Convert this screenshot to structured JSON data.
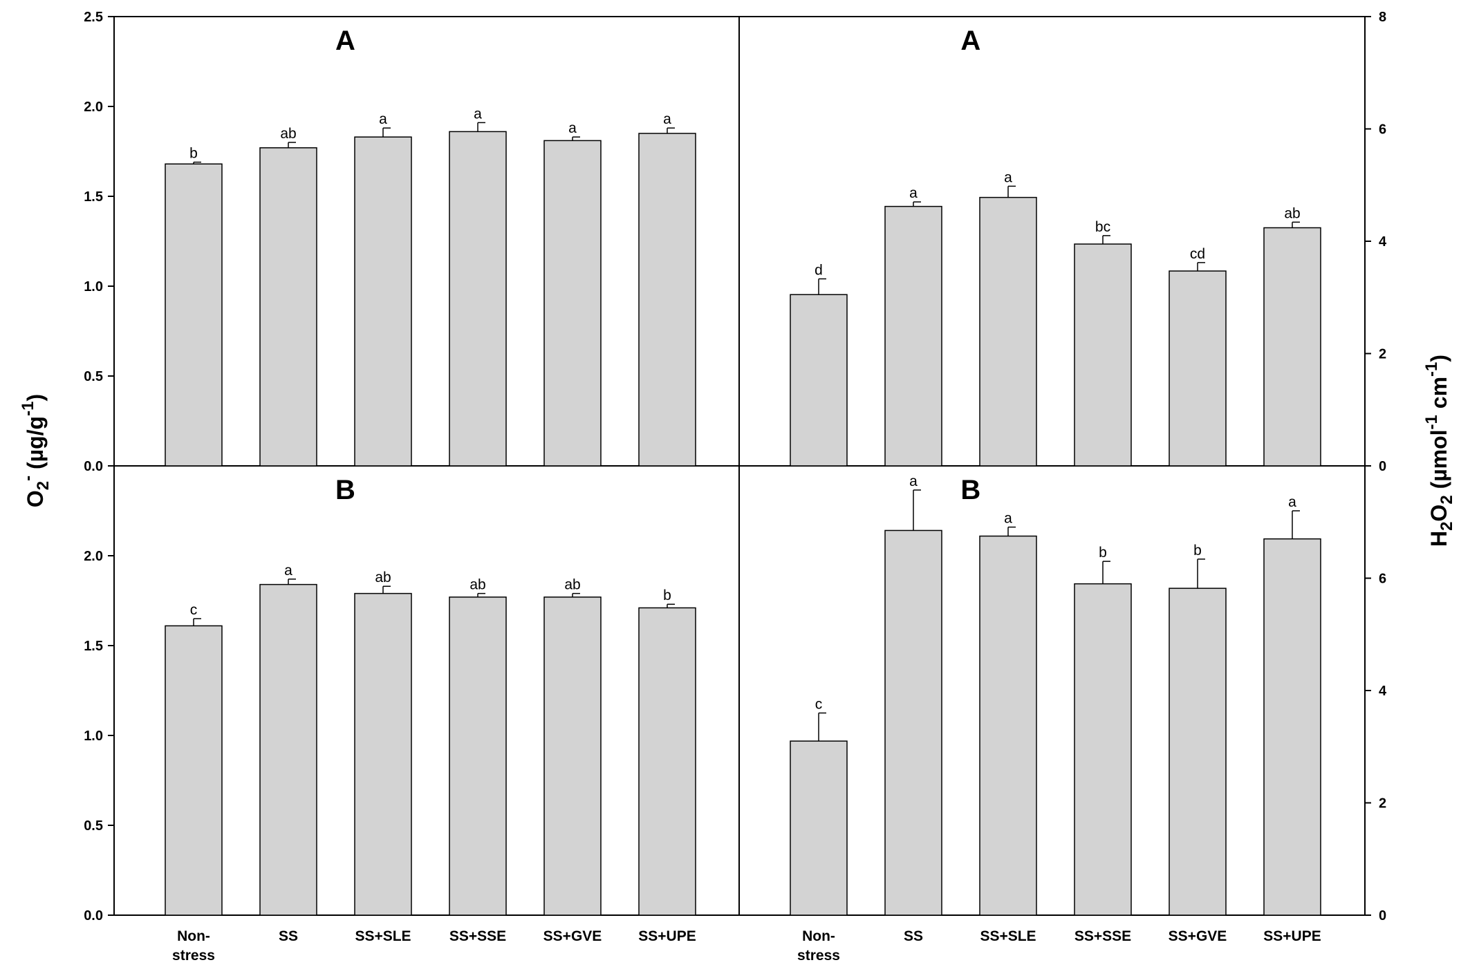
{
  "chart_data": [
    {
      "id": "top-left",
      "type": "bar",
      "panel_label": "A",
      "categories": [
        "Non-stress",
        "SS",
        "SS+SLE",
        "SS+SSE",
        "SS+GVE",
        "SS+UPE"
      ],
      "values": [
        1.68,
        1.77,
        1.83,
        1.86,
        1.81,
        1.85
      ],
      "errors": [
        0.01,
        0.03,
        0.05,
        0.05,
        0.02,
        0.03
      ],
      "significance": [
        "b",
        "ab",
        "a",
        "a",
        "a",
        "a"
      ],
      "ylim": [
        0,
        2.5
      ],
      "yticks": [
        "0.0",
        "0.5",
        "1.0",
        "1.5",
        "2.0",
        "2.5"
      ],
      "axis_side": "left"
    },
    {
      "id": "top-right",
      "type": "bar",
      "panel_label": "A",
      "categories": [
        "Non-stress",
        "SS",
        "SS+SLE",
        "SS+SSE",
        "SS+GVE",
        "SS+UPE"
      ],
      "values": [
        3.05,
        4.62,
        4.78,
        3.95,
        3.47,
        4.24
      ],
      "errors": [
        0.28,
        0.08,
        0.2,
        0.15,
        0.15,
        0.1
      ],
      "significance": [
        "d",
        "a",
        "a",
        "bc",
        "cd",
        "ab"
      ],
      "ylim": [
        0,
        8
      ],
      "yticks": [
        "0",
        "2",
        "4",
        "6",
        "8"
      ],
      "axis_side": "right"
    },
    {
      "id": "bottom-left",
      "type": "bar",
      "panel_label": "B",
      "categories": [
        "Non-stress",
        "SS",
        "SS+SLE",
        "SS+SSE",
        "SS+GVE",
        "SS+UPE"
      ],
      "values": [
        1.61,
        1.84,
        1.79,
        1.77,
        1.77,
        1.71
      ],
      "errors": [
        0.04,
        0.03,
        0.04,
        0.02,
        0.02,
        0.02
      ],
      "significance": [
        "c",
        "a",
        "ab",
        "ab",
        "ab",
        "b"
      ],
      "ylim": [
        0,
        2.5
      ],
      "yticks": [
        "0.0",
        "0.5",
        "1.0",
        "1.5",
        "2.0"
      ],
      "axis_side": "left"
    },
    {
      "id": "bottom-right",
      "type": "bar",
      "panel_label": "B",
      "categories": [
        "Non-stress",
        "SS",
        "SS+SLE",
        "SS+SSE",
        "SS+GVE",
        "SS+UPE"
      ],
      "values": [
        3.1,
        6.85,
        6.75,
        5.9,
        5.82,
        6.7
      ],
      "errors": [
        0.5,
        0.72,
        0.16,
        0.4,
        0.52,
        0.5
      ],
      "significance": [
        "c",
        "a",
        "a",
        "b",
        "b",
        "a"
      ],
      "ylim": [
        0,
        8
      ],
      "yticks": [
        "0",
        "2",
        "4",
        "6"
      ],
      "axis_side": "right"
    }
  ],
  "y_axis_left_title": {
    "main": "O",
    "sub": "2",
    "sup": "-",
    "rest": " (µg/g",
    "unit_sup": "-1",
    "close": ")"
  },
  "y_axis_right_title": {
    "main": "H",
    "sub1": "2",
    "mid": "O",
    "sub2": "2",
    "rest": " (µmol",
    "sup1": "-1",
    "cm": " cm",
    "sup2": "-1",
    "close": ")"
  },
  "category_labels_display": [
    [
      "Non-",
      "stress"
    ],
    [
      "SS"
    ],
    [
      "SS+SLE"
    ],
    [
      "SS+SSE"
    ],
    [
      "SS+GVE"
    ],
    [
      "SS+UPE"
    ]
  ],
  "colors": {
    "bar_fill": "#d3d3d3",
    "bar_stroke": "#000000",
    "axis": "#000000"
  }
}
